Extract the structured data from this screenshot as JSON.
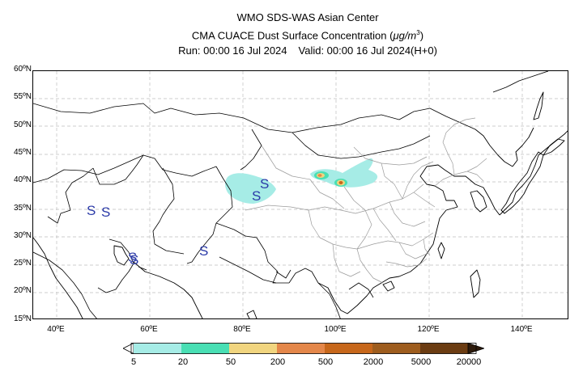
{
  "header": {
    "line1": "WMO SDS-WAS Asian Center",
    "line2_prefix": "CMA CUACE Dust Surface Concentration (",
    "line2_unit": "μg/m",
    "line2_sup": "3",
    "line2_suffix": ")",
    "run": "Run: 00:00 16 Jul 2024",
    "valid": "Valid: 00:00 16 Jul 2024(H+0)"
  },
  "map": {
    "lat_labels": [
      "60ºN",
      "55ºN",
      "50ºN",
      "45ºN",
      "40ºN",
      "35ºN",
      "30ºN",
      "25ºN",
      "20ºN",
      "15ºN"
    ],
    "lon_labels": [
      "40ºE",
      "60ºE",
      "80ºE",
      "100ºE",
      "120ºE",
      "140ºE"
    ],
    "lon_range": [
      35,
      150
    ],
    "lat_range": [
      15,
      60
    ],
    "storm_marker": "S",
    "storm_color": "#2b3aa8"
  },
  "colorbar": {
    "labels": [
      "5",
      "20",
      "50",
      "200",
      "500",
      "2000",
      "5000",
      "20000"
    ],
    "colors": [
      "#a6ece6",
      "#49dfb4",
      "#f1d57f",
      "#e4874a",
      "#c7671b",
      "#9e5d1e",
      "#6b3c12",
      "#2d1a0b"
    ]
  }
}
